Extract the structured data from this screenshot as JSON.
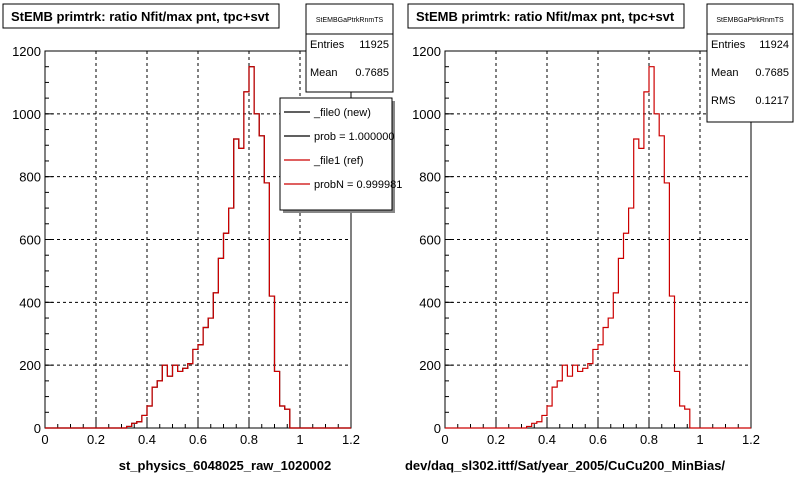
{
  "chart_data": [
    {
      "type": "histogram",
      "title": "StEMB primtrk: ratio Nfit/max pnt, tpc+svt",
      "xlabel": "st_physics_6048025_raw_1020002",
      "xlim": [
        0,
        1.2
      ],
      "ylim": [
        0,
        1200
      ],
      "xticks": [
        "0",
        "0.2",
        "0.4",
        "0.6",
        "0.8",
        "1",
        "1.2"
      ],
      "yticks": [
        "0",
        "200",
        "400",
        "600",
        "800",
        "1000",
        "1200"
      ],
      "grid": true,
      "stats": {
        "name": "StEMBGaPtrkRnmTS",
        "rows": [
          {
            "label": "Entries",
            "value": "11925"
          },
          {
            "label": "Mean",
            "value": "0.7685"
          }
        ]
      },
      "legend": {
        "placement": "top-right",
        "entries": [
          {
            "label": "_file0 (new)",
            "color": "#000000"
          },
          {
            "label": "prob = 1.000000",
            "color": "#000000"
          },
          {
            "label": "_file1 (ref)",
            "color": "#cc0000"
          },
          {
            "label": "probN = 0.999981",
            "color": "#cc0000"
          }
        ]
      },
      "bin_width": 0.02,
      "x_start": 0,
      "series": [
        {
          "name": "_file0 (new)",
          "color": "#000000",
          "values": [
            0,
            0,
            0,
            0,
            0,
            0,
            0,
            0,
            0,
            0,
            0,
            0,
            0,
            0,
            0,
            0,
            5,
            15,
            20,
            40,
            70,
            130,
            150,
            200,
            165,
            200,
            180,
            190,
            205,
            250,
            265,
            320,
            350,
            430,
            540,
            620,
            700,
            920,
            890,
            1070,
            1150,
            1000,
            930,
            780,
            420,
            180,
            70,
            60,
            0,
            0,
            0,
            0,
            0,
            0,
            0,
            0,
            0,
            0,
            0,
            0
          ]
        },
        {
          "name": "_file1 (ref)",
          "color": "#cc0000",
          "values": [
            0,
            0,
            0,
            0,
            0,
            0,
            0,
            0,
            0,
            0,
            0,
            0,
            0,
            0,
            0,
            0,
            5,
            15,
            20,
            40,
            70,
            130,
            150,
            200,
            165,
            200,
            180,
            190,
            205,
            250,
            265,
            320,
            350,
            430,
            540,
            620,
            700,
            920,
            890,
            1070,
            1150,
            1000,
            930,
            780,
            420,
            180,
            70,
            60,
            0,
            0,
            0,
            0,
            0,
            0,
            0,
            0,
            0,
            0,
            0,
            0
          ]
        }
      ]
    },
    {
      "type": "histogram",
      "title": "StEMB primtrk: ratio Nfit/max pnt, tpc+svt",
      "xlabel": "dev/daq_sl302.ittf/Sat/year_2005/CuCu200_MinBias/",
      "xlim": [
        0,
        1.2
      ],
      "ylim": [
        0,
        1200
      ],
      "xticks": [
        "0",
        "0.2",
        "0.4",
        "0.6",
        "0.8",
        "1",
        "1.2"
      ],
      "yticks": [
        "0",
        "200",
        "400",
        "600",
        "800",
        "1000",
        "1200"
      ],
      "grid": true,
      "stats": {
        "name": "StEMBGaPtrkRnmTS",
        "rows": [
          {
            "label": "Entries",
            "value": "11924"
          },
          {
            "label": "Mean",
            "value": "0.7685"
          },
          {
            "label": "RMS",
            "value": "0.1217"
          }
        ]
      },
      "bin_width": 0.02,
      "x_start": 0,
      "series": [
        {
          "name": "",
          "color": "#cc0000",
          "values": [
            0,
            0,
            0,
            0,
            0,
            0,
            0,
            0,
            0,
            0,
            0,
            0,
            0,
            0,
            0,
            0,
            5,
            15,
            20,
            40,
            70,
            130,
            150,
            200,
            165,
            200,
            180,
            190,
            205,
            250,
            265,
            320,
            350,
            430,
            540,
            620,
            700,
            920,
            890,
            1070,
            1150,
            1000,
            930,
            780,
            420,
            180,
            70,
            60,
            0,
            0,
            0,
            0,
            0,
            0,
            0,
            0,
            0,
            0,
            0,
            0
          ]
        }
      ]
    }
  ]
}
